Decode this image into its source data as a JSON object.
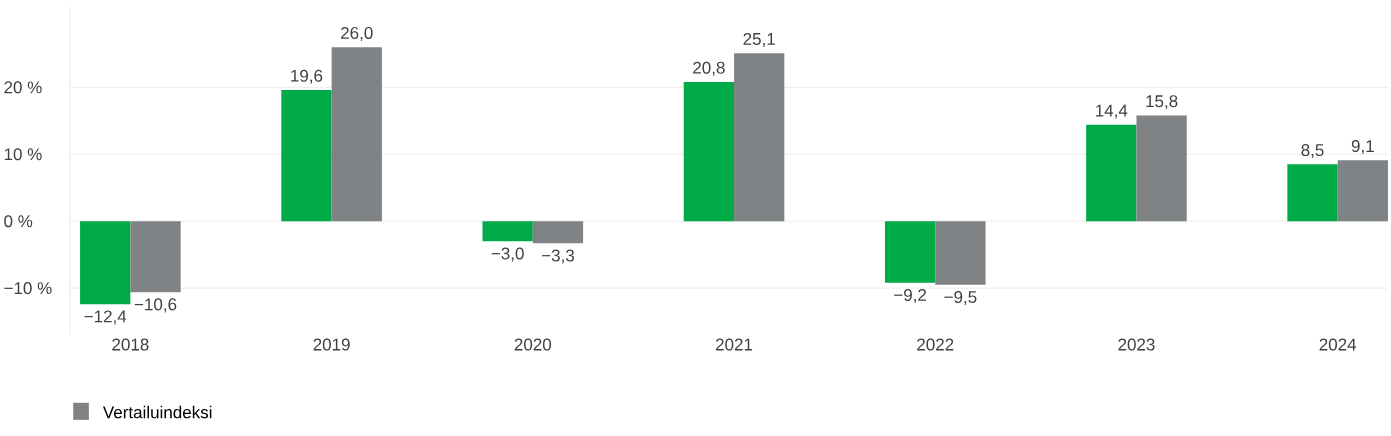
{
  "chart_data": {
    "type": "bar",
    "categories": [
      "2018",
      "2019",
      "2020",
      "2021",
      "2022",
      "2023",
      "2024"
    ],
    "series": [
      {
        "color": "#00ab47",
        "values": [
          -12.4,
          19.6,
          -3.0,
          20.8,
          -9.2,
          14.4,
          8.5
        ],
        "value_labels": [
          "−12,4",
          "19,6",
          "−3,0",
          "20,8",
          "−9,2",
          "14,4",
          "8,5"
        ]
      },
      {
        "name": "Vertailuindeksi",
        "color": "#7f8385",
        "values": [
          -10.6,
          26.0,
          -3.3,
          25.1,
          -9.5,
          15.8,
          9.1
        ],
        "value_labels": [
          "−10,6",
          "26,0",
          "−3,3",
          "25,1",
          "−9,5",
          "15,8",
          "9,1"
        ]
      }
    ],
    "yticks": [
      {
        "value": -10,
        "label": "−10 %"
      },
      {
        "value": 0,
        "label": "0 %"
      },
      {
        "value": 10,
        "label": "10 %"
      },
      {
        "value": 20,
        "label": "20 %"
      }
    ],
    "ylim": [
      -17,
      32
    ],
    "grid": "y",
    "legend": "bottom left"
  }
}
